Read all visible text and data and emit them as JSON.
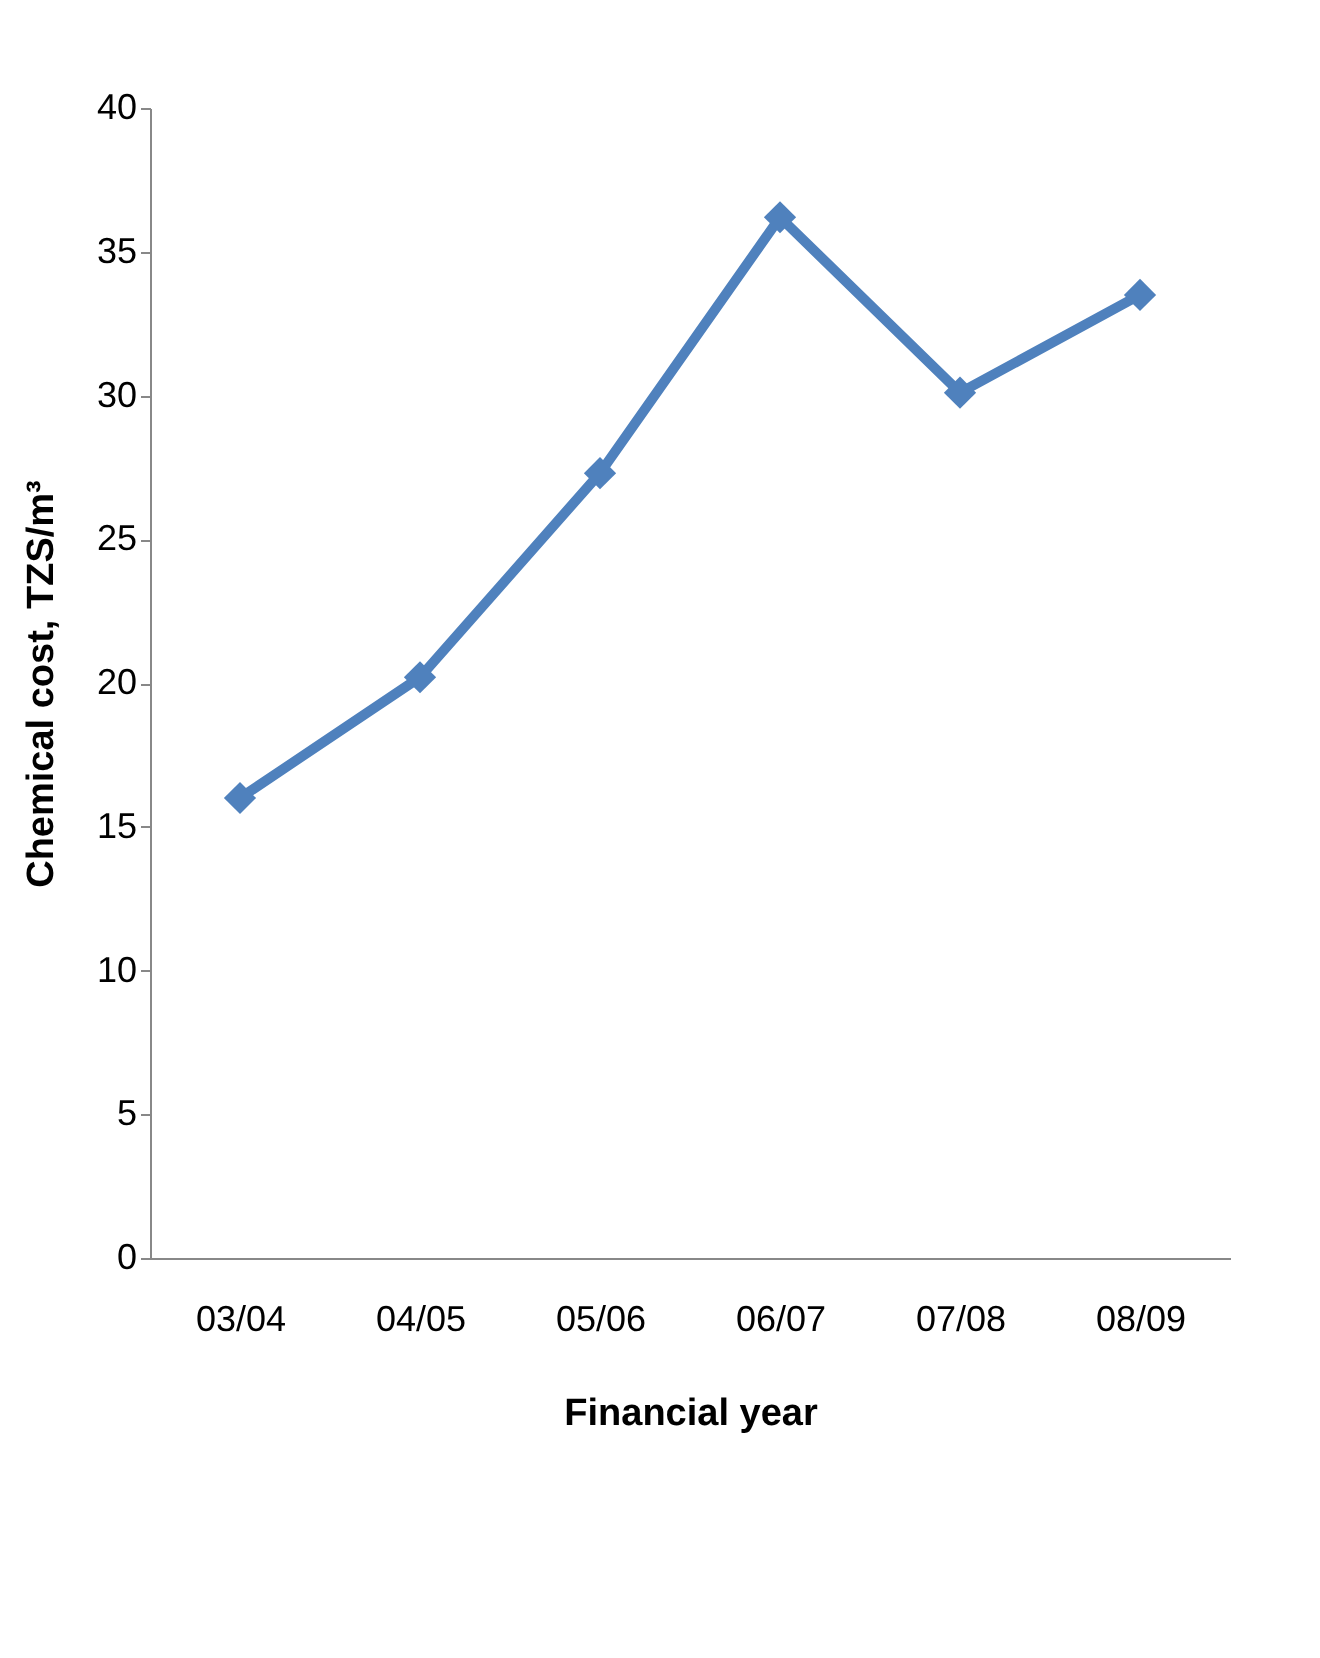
{
  "chart_data": {
    "type": "line",
    "xlabel": "Financial year",
    "ylabel": "Chemical cost, TZS/m³",
    "categories": [
      "03/04",
      "04/05",
      "05/06",
      "06/07",
      "07/08",
      "08/09"
    ],
    "series": [
      {
        "color": "#4f81bd",
        "values": [
          16,
          20.2,
          27.3,
          36.2,
          30.1,
          33.5
        ]
      }
    ],
    "ylim": [
      0,
      40
    ],
    "yticks": [
      0,
      5,
      10,
      15,
      20,
      25,
      30,
      35,
      40
    ],
    "grid": false,
    "marker": "diamond",
    "line_style": "solid"
  }
}
